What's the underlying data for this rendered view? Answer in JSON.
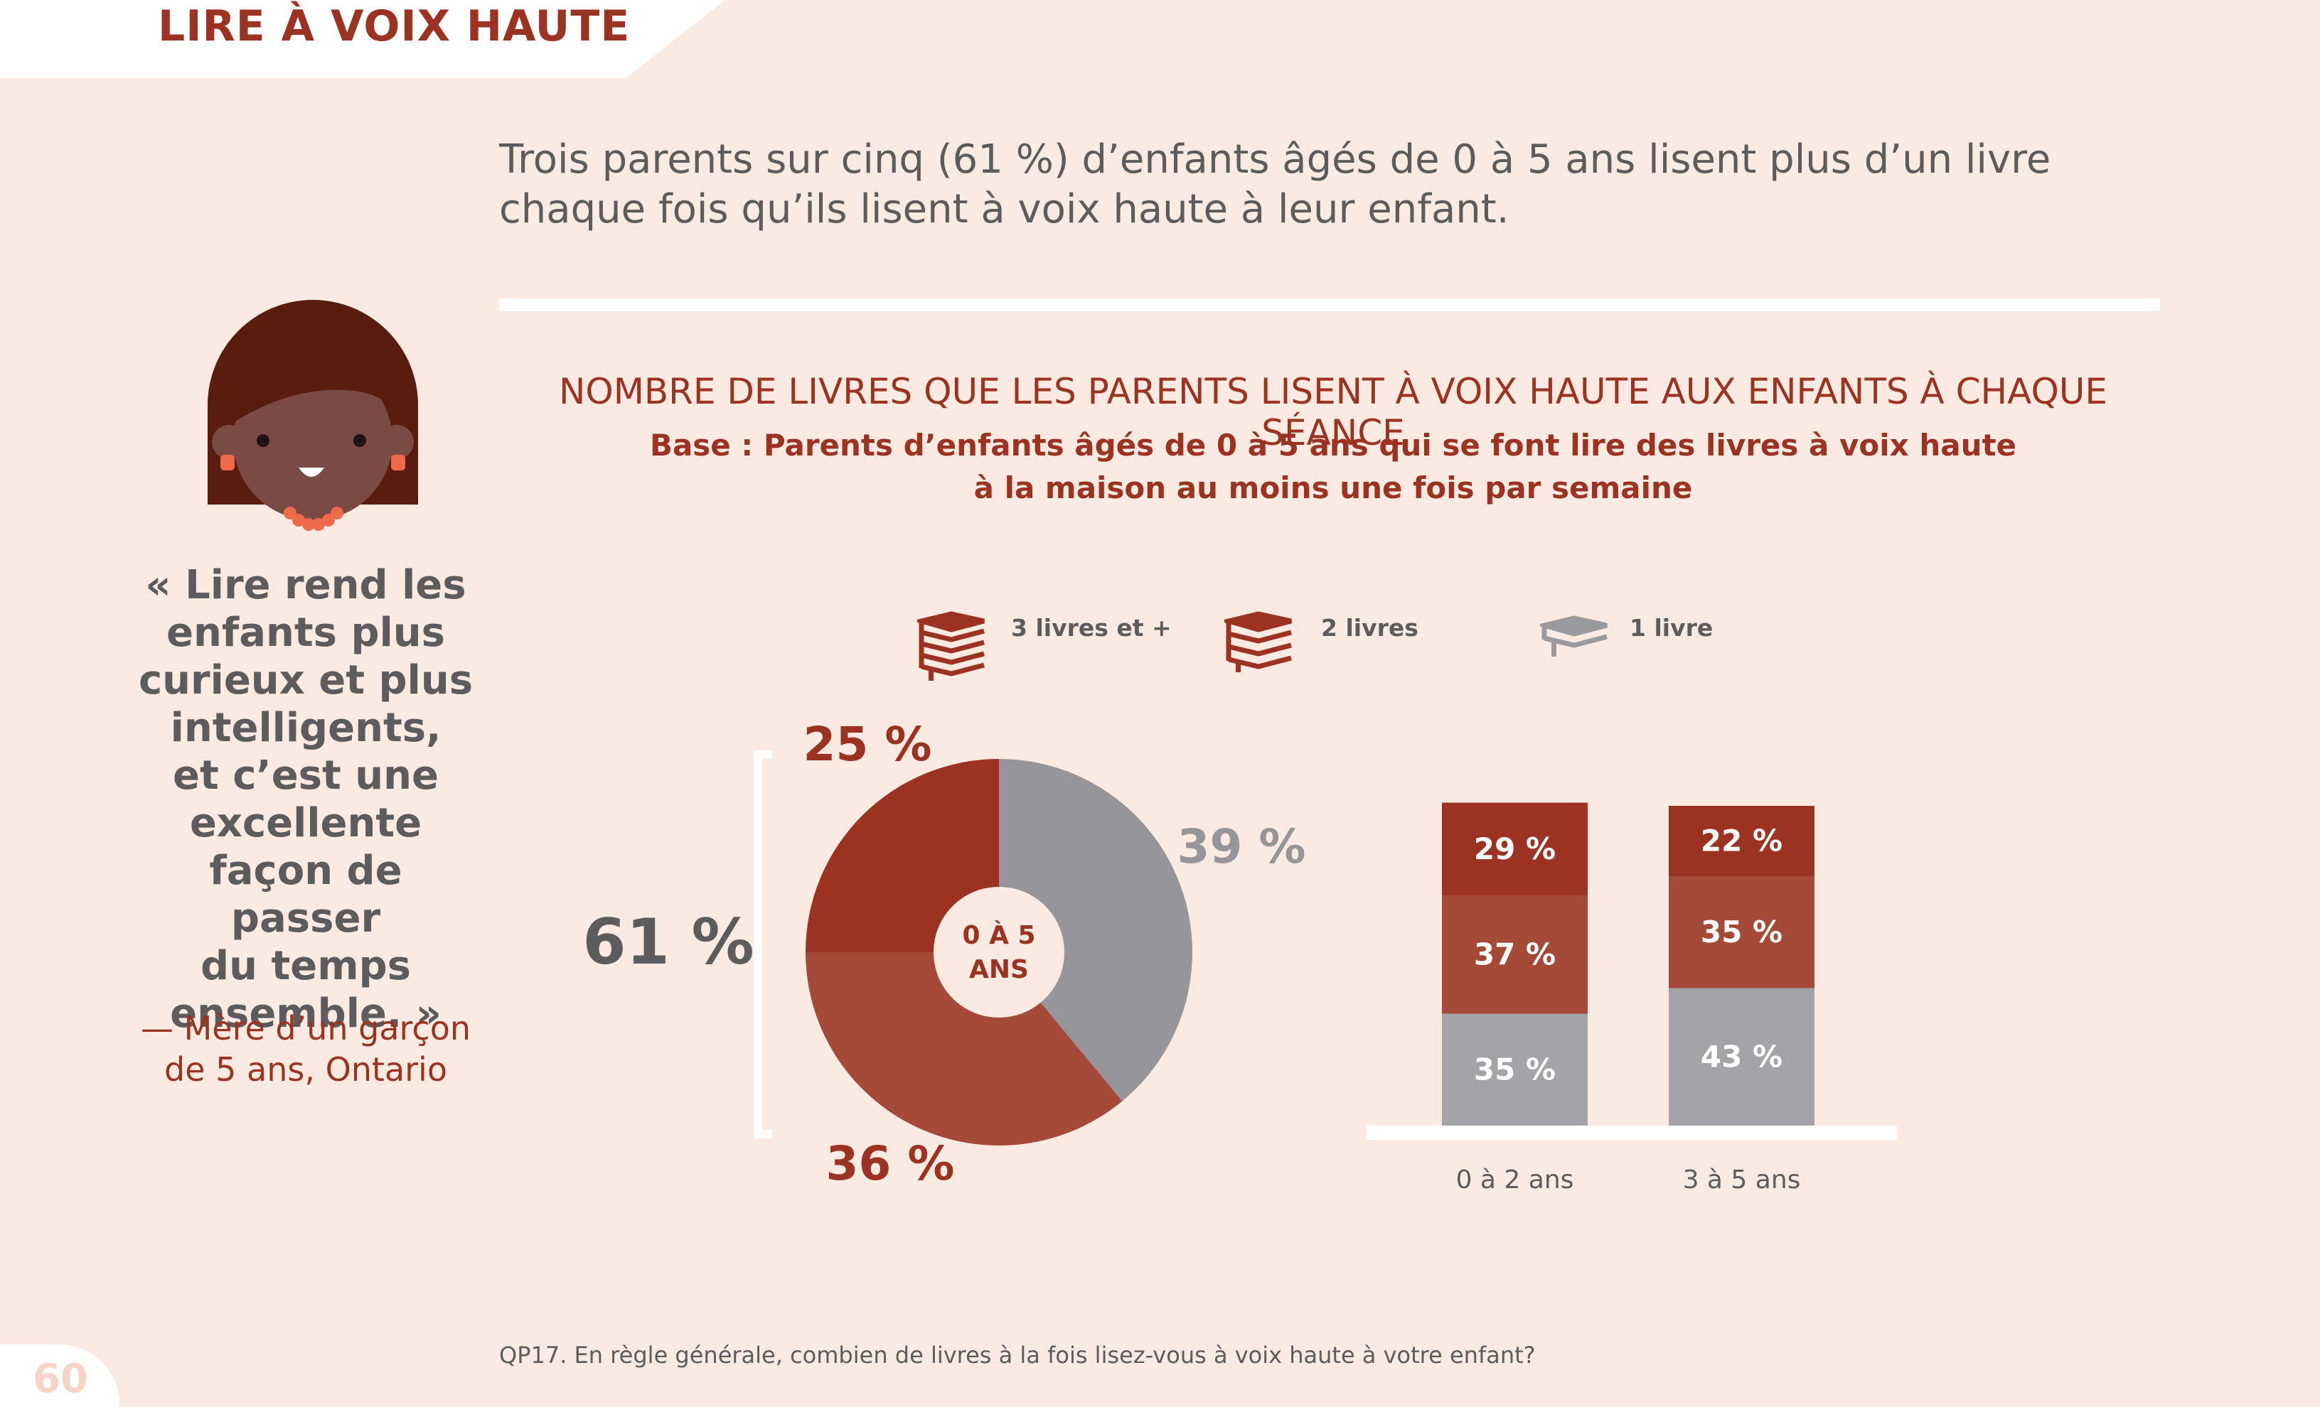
{
  "header": {
    "section_title": "LIRE À VOIX HAUTE"
  },
  "intro": "Trois parents sur cinq (61 %) d’enfants âgés de 0 à 5 ans lisent plus d’un livre chaque fois qu’ils lisent à voix haute à leur enfant.",
  "quote": {
    "lines": [
      "« Lire rend les",
      "enfants plus",
      "curieux et plus",
      "intelligents,",
      "et c’est une",
      "excellente",
      "façon de passer",
      "du temps",
      "ensemble. »"
    ],
    "attribution_lines": [
      "— Mère d’un garçon",
      "de 5 ans, Ontario"
    ]
  },
  "legend": {
    "items": [
      {
        "label": "3 livres et +",
        "icon": "book-stack-icon",
        "color": "#9c3322"
      },
      {
        "label": "2 livres",
        "icon": "two-books-icon",
        "color": "#9c3322"
      },
      {
        "label": "1 livre",
        "icon": "single-book-icon",
        "color": "#9a9a9e"
      }
    ]
  },
  "colors": {
    "three_plus": "#9c3322",
    "two": "#a54a39",
    "one": "#96969a",
    "one_bar": "#a4a3a7",
    "accent_text": "#9c3322",
    "gray_text": "#5c5b5e",
    "background": "#fbeae1"
  },
  "chart_data": [
    {
      "type": "pie",
      "title": "NOMBRE DE LIVRES QUE LES PARENTS LISENT À VOIX HAUTE AUX ENFANTS À CHAQUE SÉANCE",
      "subtitle": "Base : Parents d’enfants âgés de 0 à 5 ans qui se font lire des livres à voix haute à la maison au moins une fois par semaine",
      "center_label": [
        "0 À 5",
        "ANS"
      ],
      "slices": [
        {
          "name": "1 livre",
          "value": 39,
          "label": "39 %"
        },
        {
          "name": "2 livres",
          "value": 36,
          "label": "36 %"
        },
        {
          "name": "3 livres et +",
          "value": 25,
          "label": "25 %"
        }
      ],
      "bracket_label": "61 %"
    },
    {
      "type": "bar",
      "stacked": true,
      "categories": [
        "0 à 2 ans",
        "3 à 5 ans"
      ],
      "series": [
        {
          "name": "1 livre",
          "values": [
            35,
            43
          ],
          "labels": [
            "35 %",
            "43 %"
          ]
        },
        {
          "name": "2 livres",
          "values": [
            37,
            35
          ],
          "labels": [
            "37 %",
            "35 %"
          ]
        },
        {
          "name": "3 livres et +",
          "values": [
            29,
            22
          ],
          "labels": [
            "29 %",
            "22 %"
          ]
        }
      ]
    }
  ],
  "footnote": "QP17. En règle générale, combien de livres à la fois lisez-vous à voix haute à votre enfant?",
  "page_number": "60"
}
